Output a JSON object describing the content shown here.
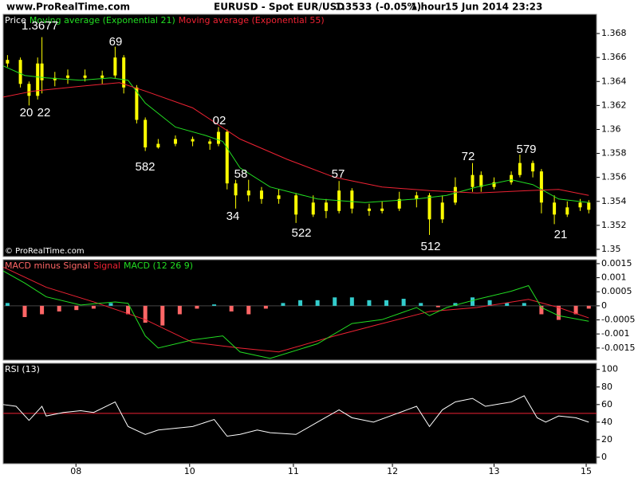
{
  "header": {
    "site": "www.ProRealTime.com",
    "instrument": "EURUSD - Spot EUR/USD",
    "quote": "1.3533 (-0.05%)",
    "timeframe": "1 hour",
    "datetime": "15 Jun 2014 23:23"
  },
  "chart_data": [
    {
      "type": "candlestick",
      "xlim": [
        0,
        137.8
      ],
      "ylim": [
        1.3494,
        1.3696
      ],
      "yticks": [
        1.35,
        1.352,
        1.354,
        1.356,
        1.358,
        1.36,
        1.362,
        1.364,
        1.366,
        1.368
      ],
      "candles": {
        "name": "Price",
        "color": "#ffff00",
        "x": [
          1,
          4,
          6,
          8,
          9,
          12,
          15,
          19,
          23,
          26,
          28,
          31,
          33,
          36,
          40,
          44,
          48,
          50,
          52,
          54,
          57,
          60,
          64,
          68,
          72,
          75,
          78,
          81,
          85,
          88,
          92,
          96,
          99,
          102,
          105,
          109,
          111,
          114,
          118,
          120,
          123,
          125,
          128,
          131,
          134,
          136
        ],
        "open": [
          1.3655,
          1.3658,
          1.3638,
          1.3628,
          1.3655,
          1.3641,
          1.3643,
          1.3645,
          1.3643,
          1.3645,
          1.366,
          1.3635,
          1.3608,
          1.3585,
          1.3588,
          1.3592,
          1.359,
          1.3588,
          1.3598,
          1.3555,
          1.3545,
          1.3549,
          1.3542,
          1.3545,
          1.3529,
          1.3539,
          1.3532,
          1.3549,
          1.3534,
          1.3532,
          1.3534,
          1.3542,
          1.3545,
          1.3525,
          1.3539,
          1.3552,
          1.3562,
          1.3552,
          1.3556,
          1.3562,
          1.3572,
          1.3565,
          1.3539,
          1.3529,
          1.3535,
          1.3539
        ],
        "high": [
          1.3662,
          1.366,
          1.364,
          1.366,
          1.3677,
          1.3648,
          1.365,
          1.365,
          1.3649,
          1.3669,
          1.3662,
          1.3637,
          1.361,
          1.3592,
          1.3595,
          1.3594,
          1.3592,
          1.3602,
          1.36,
          1.3558,
          1.3558,
          1.3552,
          1.355,
          1.3547,
          1.3545,
          1.3542,
          1.3557,
          1.3551,
          1.3538,
          1.354,
          1.3548,
          1.3548,
          1.3547,
          1.3545,
          1.356,
          1.3572,
          1.3565,
          1.356,
          1.3565,
          1.3579,
          1.3574,
          1.3567,
          1.3545,
          1.354,
          1.3542,
          1.3541
        ],
        "low": [
          1.3652,
          1.3635,
          1.362,
          1.3625,
          1.363,
          1.3636,
          1.3638,
          1.364,
          1.3638,
          1.3643,
          1.363,
          1.3605,
          1.3582,
          1.3584,
          1.3586,
          1.3586,
          1.3583,
          1.3586,
          1.355,
          1.3534,
          1.354,
          1.3538,
          1.3538,
          1.3522,
          1.3527,
          1.3526,
          1.353,
          1.353,
          1.3528,
          1.353,
          1.3532,
          1.3535,
          1.3512,
          1.3522,
          1.3537,
          1.3548,
          1.3548,
          1.355,
          1.3554,
          1.356,
          1.356,
          1.353,
          1.3521,
          1.3527,
          1.3532,
          1.353
        ],
        "close": [
          1.3658,
          1.3638,
          1.3628,
          1.3655,
          1.3641,
          1.3643,
          1.3645,
          1.3643,
          1.3645,
          1.366,
          1.3635,
          1.3608,
          1.3585,
          1.3588,
          1.3592,
          1.359,
          1.3588,
          1.3598,
          1.3555,
          1.3545,
          1.3549,
          1.3542,
          1.3545,
          1.3529,
          1.3539,
          1.3532,
          1.3549,
          1.3534,
          1.3532,
          1.3534,
          1.3542,
          1.3545,
          1.3525,
          1.3539,
          1.3552,
          1.3562,
          1.3552,
          1.3556,
          1.3562,
          1.3572,
          1.3565,
          1.3539,
          1.3529,
          1.3535,
          1.3539,
          1.3533
        ]
      },
      "series": [
        {
          "name": "Moving average (Exponential 21)",
          "color": "#22dd22",
          "x": [
            0,
            5,
            10,
            18,
            25,
            29,
            33,
            40,
            47,
            51,
            55,
            62,
            73,
            84,
            96,
            103,
            110,
            118,
            123,
            129,
            136
          ],
          "values": [
            1.3653,
            1.3645,
            1.3643,
            1.3641,
            1.3643,
            1.3641,
            1.3622,
            1.3602,
            1.3595,
            1.359,
            1.3568,
            1.3552,
            1.3542,
            1.3539,
            1.3542,
            1.3545,
            1.3552,
            1.3558,
            1.3554,
            1.3542,
            1.3539
          ]
        },
        {
          "name": "Moving average (Exponential 55)",
          "color": "#ee2233",
          "x": [
            0,
            7,
            18,
            27,
            33,
            44,
            55,
            66,
            77,
            88,
            99,
            110,
            122,
            129,
            136
          ],
          "values": [
            1.3627,
            1.3632,
            1.3636,
            1.3639,
            1.3632,
            1.3618,
            1.3592,
            1.3575,
            1.356,
            1.3552,
            1.3549,
            1.3547,
            1.3549,
            1.355,
            1.3545
          ]
        }
      ],
      "annotations": [
        "1.3677",
        "20",
        "22",
        "69",
        "582",
        "02",
        "58",
        "34",
        "57",
        "522",
        "72",
        "579",
        "512",
        "21"
      ],
      "watermark": "© ProRealTime.com"
    },
    {
      "type": "macd",
      "xlim": [
        0,
        137.8
      ],
      "ylim": [
        -0.00193,
        0.00164
      ],
      "yticks": [
        -0.0015,
        -0.001,
        -0.0005,
        0,
        0.0005,
        0.001,
        0.0015
      ],
      "histogram": {
        "name": "MACD minus Signal",
        "pos_color": "#33cccc",
        "neg_color": "#ff6666",
        "x": [
          1,
          5,
          9,
          13,
          17,
          21,
          25,
          29,
          33,
          37,
          41,
          45,
          49,
          53,
          57,
          61,
          65,
          69,
          73,
          77,
          81,
          85,
          89,
          93,
          97,
          101,
          105,
          109,
          113,
          117,
          121,
          125,
          129,
          133,
          136
        ],
        "values": [
          0.0001,
          -0.0004,
          -0.0003,
          -0.0002,
          -0.00015,
          -0.0001,
          0.0001,
          -0.0003,
          -0.0006,
          -0.0007,
          -0.0003,
          -0.0001,
          5e-05,
          -0.0002,
          -0.0003,
          -0.0001,
          0.0001,
          0.0002,
          0.0002,
          0.0003,
          0.0003,
          0.0002,
          0.0002,
          0.00025,
          0.0001,
          -5e-05,
          0.0001,
          0.0003,
          0.0002,
          0.0001,
          0.0001,
          -0.0003,
          -0.0005,
          -0.0003,
          -0.0001
        ]
      },
      "series": [
        {
          "name": "Signal",
          "color": "#ee2233",
          "x": [
            0,
            10,
            21,
            33,
            44,
            55,
            64,
            77,
            88,
            99,
            110,
            122,
            129,
            136
          ],
          "values": [
            0.00138,
            0.00066,
            0.00014,
            -0.00049,
            -0.0013,
            -0.0015,
            -0.00164,
            -0.00107,
            -0.00063,
            -0.0002,
            -6e-05,
            0.00023,
            -6e-05,
            -0.00043
          ]
        },
        {
          "name": "MACD (12 26 9)",
          "color": "#22dd22",
          "x": [
            0,
            5,
            10,
            18,
            26,
            29,
            33,
            36,
            44,
            51,
            55,
            62,
            73,
            81,
            88,
            96,
            99,
            103,
            110,
            118,
            122,
            125,
            129,
            136
          ],
          "values": [
            0.00124,
            0.00081,
            0.00032,
            3e-05,
            0.00014,
            9e-05,
            -0.00107,
            -0.0015,
            -0.00121,
            -0.00107,
            -0.00164,
            -0.00187,
            -0.00135,
            -0.00063,
            -0.00049,
            -6e-05,
            -0.00035,
            -6e-05,
            0.00023,
            0.00052,
            0.00072,
            -6e-05,
            -0.00035,
            -0.00055
          ]
        }
      ]
    },
    {
      "type": "rsi",
      "xlim": [
        0,
        137.8
      ],
      "ylim": [
        -7.3,
        107
      ],
      "yticks": [
        0,
        20,
        40,
        60,
        80,
        100
      ],
      "level": 50,
      "level_color": "#ee2233",
      "xticks": [
        {
          "value": 16.9,
          "label": "08"
        },
        {
          "value": 43.3,
          "label": "10"
        },
        {
          "value": 67.4,
          "label": "11"
        },
        {
          "value": 90.4,
          "label": "12"
        },
        {
          "value": 114,
          "label": "13"
        },
        {
          "value": 135.4,
          "label": "15"
        }
      ],
      "series": [
        {
          "name": "RSI (13)",
          "color": "#ffffff",
          "x": [
            0,
            3,
            6,
            9,
            10,
            14,
            18,
            21,
            26,
            29,
            33,
            36,
            44,
            49,
            52,
            55,
            59,
            62,
            68,
            73,
            78,
            81,
            86,
            91,
            96,
            99,
            102,
            105,
            109,
            112,
            118,
            121,
            124,
            126,
            129,
            133,
            136
          ],
          "values": [
            60,
            58,
            42,
            58,
            47,
            51,
            53,
            51,
            63,
            35,
            26,
            31,
            35,
            43,
            24,
            26,
            31,
            28,
            26,
            40,
            54,
            45,
            40,
            49,
            58,
            35,
            54,
            63,
            67,
            58,
            63,
            70,
            45,
            40,
            47,
            45,
            40
          ]
        }
      ]
    }
  ]
}
